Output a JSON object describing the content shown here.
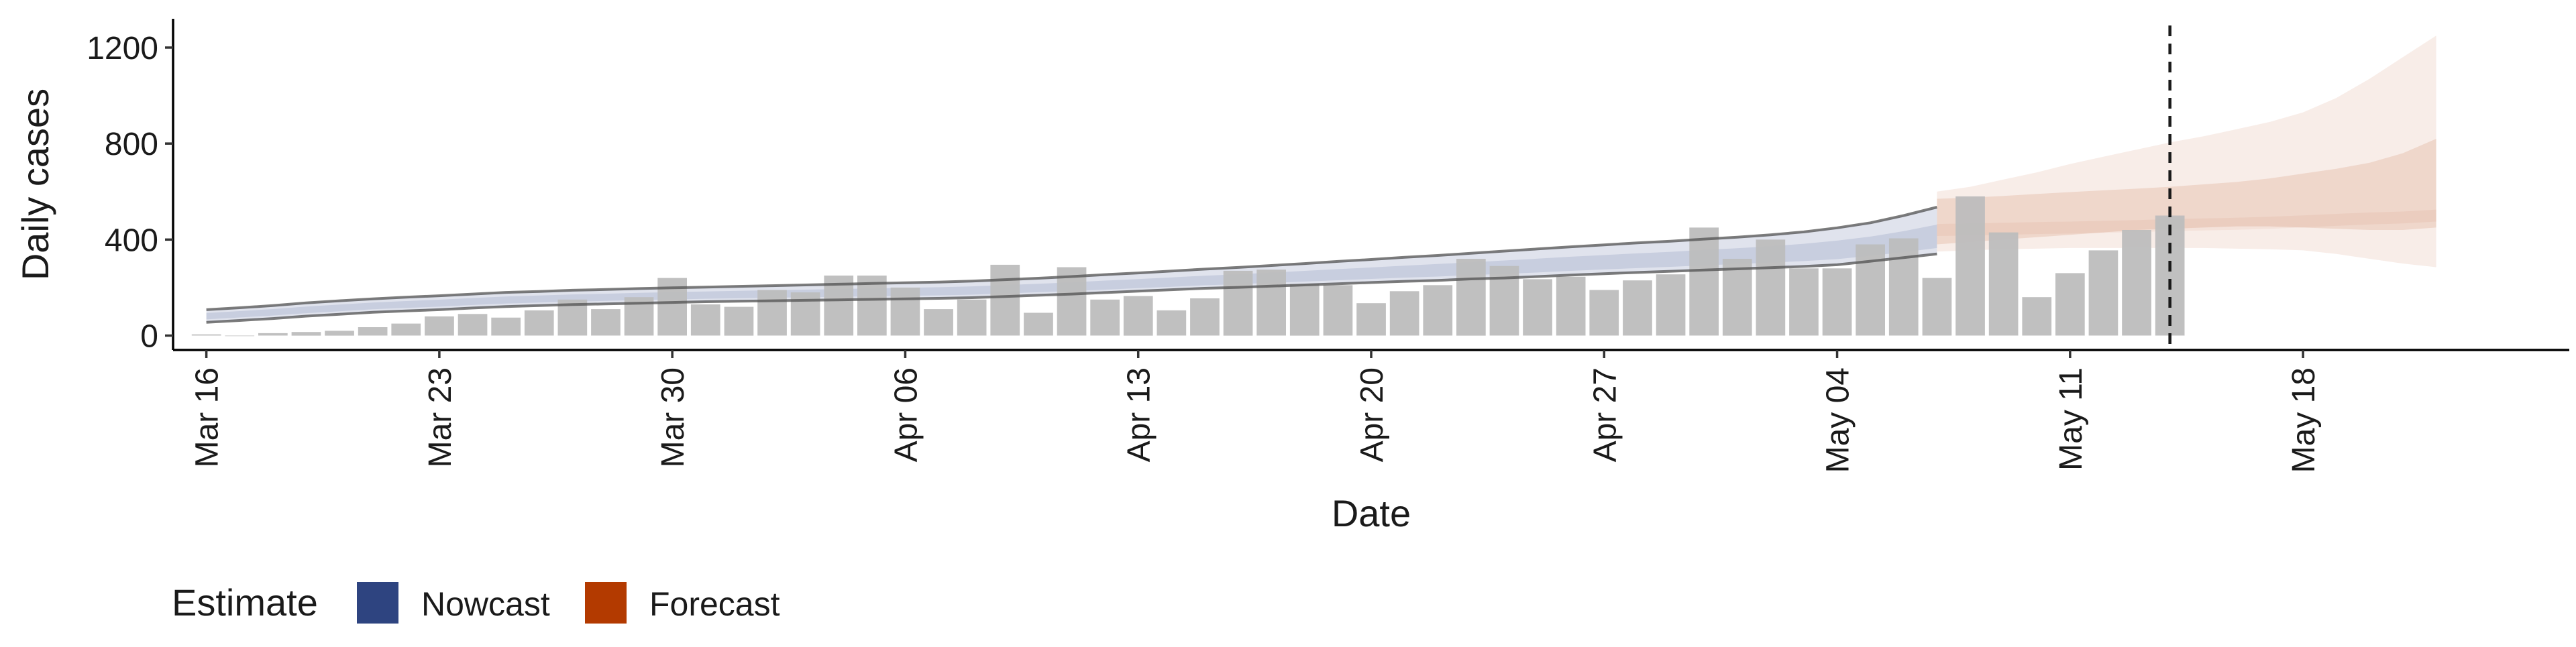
{
  "chart_data": {
    "type": "bar",
    "xlabel": "Date",
    "ylabel": "Daily cases",
    "ylim": [
      -60,
      1320
    ],
    "yticks": [
      0,
      400,
      800,
      1200
    ],
    "xlim": [
      "2020-03-15",
      "2020-05-26"
    ],
    "xticks": [
      {
        "date": "2020-03-16",
        "label": "Mar 16"
      },
      {
        "date": "2020-03-23",
        "label": "Mar 23"
      },
      {
        "date": "2020-03-30",
        "label": "Mar 30"
      },
      {
        "date": "2020-04-06",
        "label": "Apr 06"
      },
      {
        "date": "2020-04-13",
        "label": "Apr 13"
      },
      {
        "date": "2020-04-20",
        "label": "Apr 20"
      },
      {
        "date": "2020-04-27",
        "label": "Apr 27"
      },
      {
        "date": "2020-05-04",
        "label": "May 04"
      },
      {
        "date": "2020-05-11",
        "label": "May 11"
      },
      {
        "date": "2020-05-18",
        "label": "May 18"
      }
    ],
    "grid": false,
    "bars": {
      "start_date": "2020-03-16",
      "values": [
        5,
        0,
        10,
        15,
        20,
        35,
        50,
        80,
        90,
        75,
        105,
        150,
        110,
        160,
        240,
        130,
        120,
        190,
        180,
        250,
        250,
        200,
        110,
        150,
        295,
        95,
        285,
        150,
        165,
        105,
        155,
        270,
        275,
        215,
        210,
        135,
        185,
        210,
        320,
        290,
        235,
        245,
        190,
        230,
        255,
        450,
        320,
        400,
        280,
        280,
        380,
        405,
        240,
        580,
        430,
        160,
        260,
        355,
        440,
        500
      ],
      "color": "#bdbdbd"
    },
    "nowcast": {
      "start_date": "2020-03-16",
      "median": [
        80,
        88,
        96,
        106,
        114,
        122,
        128,
        133,
        140,
        146,
        150,
        154,
        157,
        160,
        163,
        166,
        168,
        170,
        172,
        174,
        176,
        178,
        180,
        183,
        188,
        193,
        198,
        204,
        210,
        216,
        222,
        227,
        233,
        239,
        245,
        251,
        257,
        262,
        268,
        274,
        280,
        287,
        293,
        299,
        305,
        312,
        318,
        325,
        333,
        342,
        355,
        370,
        390
      ],
      "lower": [
        55,
        63,
        71,
        81,
        89,
        97,
        103,
        108,
        115,
        121,
        125,
        129,
        132,
        135,
        138,
        141,
        143,
        145,
        147,
        149,
        151,
        153,
        155,
        158,
        163,
        168,
        173,
        179,
        185,
        191,
        197,
        201,
        206,
        211,
        216,
        221,
        226,
        230,
        236,
        240,
        246,
        252,
        258,
        263,
        268,
        273,
        278,
        283,
        288,
        295,
        310,
        325,
        340
      ],
      "upper": [
        108,
        116,
        125,
        136,
        145,
        153,
        160,
        166,
        173,
        180,
        184,
        189,
        192,
        196,
        199,
        202,
        205,
        208,
        211,
        214,
        217,
        220,
        223,
        227,
        233,
        239,
        246,
        254,
        261,
        269,
        277,
        284,
        292,
        300,
        309,
        317,
        326,
        334,
        343,
        352,
        361,
        370,
        378,
        386,
        393,
        402,
        410,
        420,
        432,
        449,
        470,
        500,
        535
      ],
      "color": "#3c4f8c"
    },
    "forecast": {
      "start_date": "2020-05-07",
      "median": [
        440,
        442,
        445,
        448,
        450,
        453,
        456,
        460,
        463,
        466,
        470,
        476,
        482,
        488,
        492,
        500
      ],
      "inner_lower": [
        380,
        390,
        400,
        410,
        420,
        430,
        440,
        445,
        450,
        455,
        455,
        450,
        445,
        440,
        440,
        450
      ],
      "inner_upper": [
        570,
        575,
        582,
        590,
        598,
        605,
        612,
        620,
        630,
        640,
        655,
        675,
        695,
        720,
        760,
        820
      ],
      "outer_lower": [
        350,
        355,
        360,
        362,
        365,
        365,
        365,
        365,
        365,
        362,
        360,
        355,
        340,
        320,
        300,
        285
      ],
      "outer_upper": [
        600,
        620,
        650,
        680,
        715,
        745,
        775,
        805,
        830,
        860,
        890,
        930,
        990,
        1070,
        1160,
        1250
      ],
      "color": "#b63b00"
    },
    "vline_date": "2020-05-14",
    "legend": {
      "title": "Estimate",
      "placement": "bottom-left",
      "items": [
        {
          "label": "Nowcast",
          "color": "#2e4480"
        },
        {
          "label": "Forecast",
          "color": "#b33a00"
        }
      ]
    }
  }
}
